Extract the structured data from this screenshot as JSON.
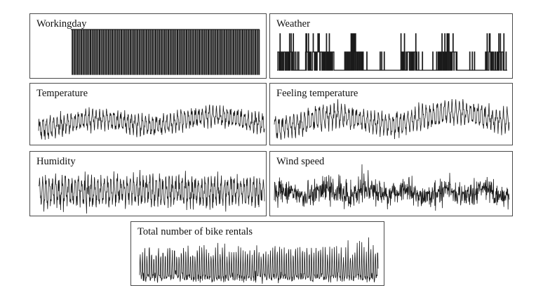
{
  "chart_data": [
    {
      "key": "working",
      "type": "line",
      "title": "Workingday",
      "series_style": "step",
      "ylim": [
        0,
        1
      ],
      "n": 730,
      "seed": 11
    },
    {
      "key": "weather",
      "type": "line",
      "title": "Weather",
      "series_style": "step",
      "ylim": [
        1,
        3
      ],
      "n": 730,
      "seed": 23
    },
    {
      "key": "temp",
      "type": "line",
      "title": "Temperature",
      "n": 730,
      "seed": 37
    },
    {
      "key": "feel",
      "type": "line",
      "title": "Feeling temperature",
      "n": 730,
      "seed": 41
    },
    {
      "key": "humid",
      "type": "line",
      "title": "Humidity",
      "n": 730,
      "seed": 53
    },
    {
      "key": "wind",
      "type": "line",
      "title": "Wind speed",
      "n": 730,
      "seed": 67
    },
    {
      "key": "total",
      "type": "line",
      "title": "Total number of bike rentals",
      "n": 730,
      "seed": 79
    }
  ],
  "colors": {
    "line": "#1a1a1a",
    "border": "#4a4a4a"
  }
}
